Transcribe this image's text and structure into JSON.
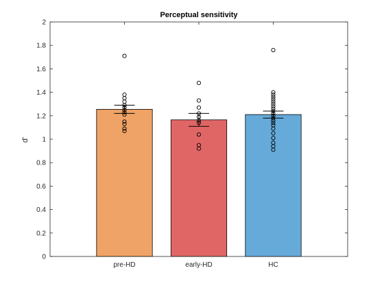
{
  "chart_data": {
    "type": "bar",
    "title": "Perceptual sensitivity",
    "xlabel": "",
    "ylabel": "d'",
    "ylim": [
      0,
      2
    ],
    "yticks": [
      0,
      0.2,
      0.4,
      0.6,
      0.8,
      1,
      1.2,
      1.4,
      1.6,
      1.8,
      2
    ],
    "ytick_labels": [
      "0",
      "0.2",
      "0.4",
      "0.6",
      "0.8",
      "1",
      "1.2",
      "1.4",
      "1.6",
      "1.8",
      "2"
    ],
    "xlim": [
      0,
      4
    ],
    "categories": [
      "pre-HD",
      "early-HD",
      "HC"
    ],
    "values": [
      1.255,
      1.165,
      1.21
    ],
    "error": [
      0.035,
      0.055,
      0.03
    ],
    "colors": [
      "#EFA366",
      "#E06666",
      "#66AADA"
    ],
    "grid": false,
    "points": [
      [
        1.71,
        1.38,
        1.35,
        1.32,
        1.29,
        1.27,
        1.25,
        1.23,
        1.21,
        1.15,
        1.13,
        1.09,
        1.07
      ],
      [
        1.48,
        1.33,
        1.27,
        1.22,
        1.19,
        1.16,
        1.14,
        1.04,
        0.95,
        0.92
      ],
      [
        1.76,
        1.4,
        1.38,
        1.36,
        1.34,
        1.32,
        1.3,
        1.28,
        1.26,
        1.24,
        1.22,
        1.2,
        1.18,
        1.16,
        1.14,
        1.12,
        1.09,
        1.05,
        1.01,
        0.97,
        0.94,
        0.91
      ]
    ]
  }
}
